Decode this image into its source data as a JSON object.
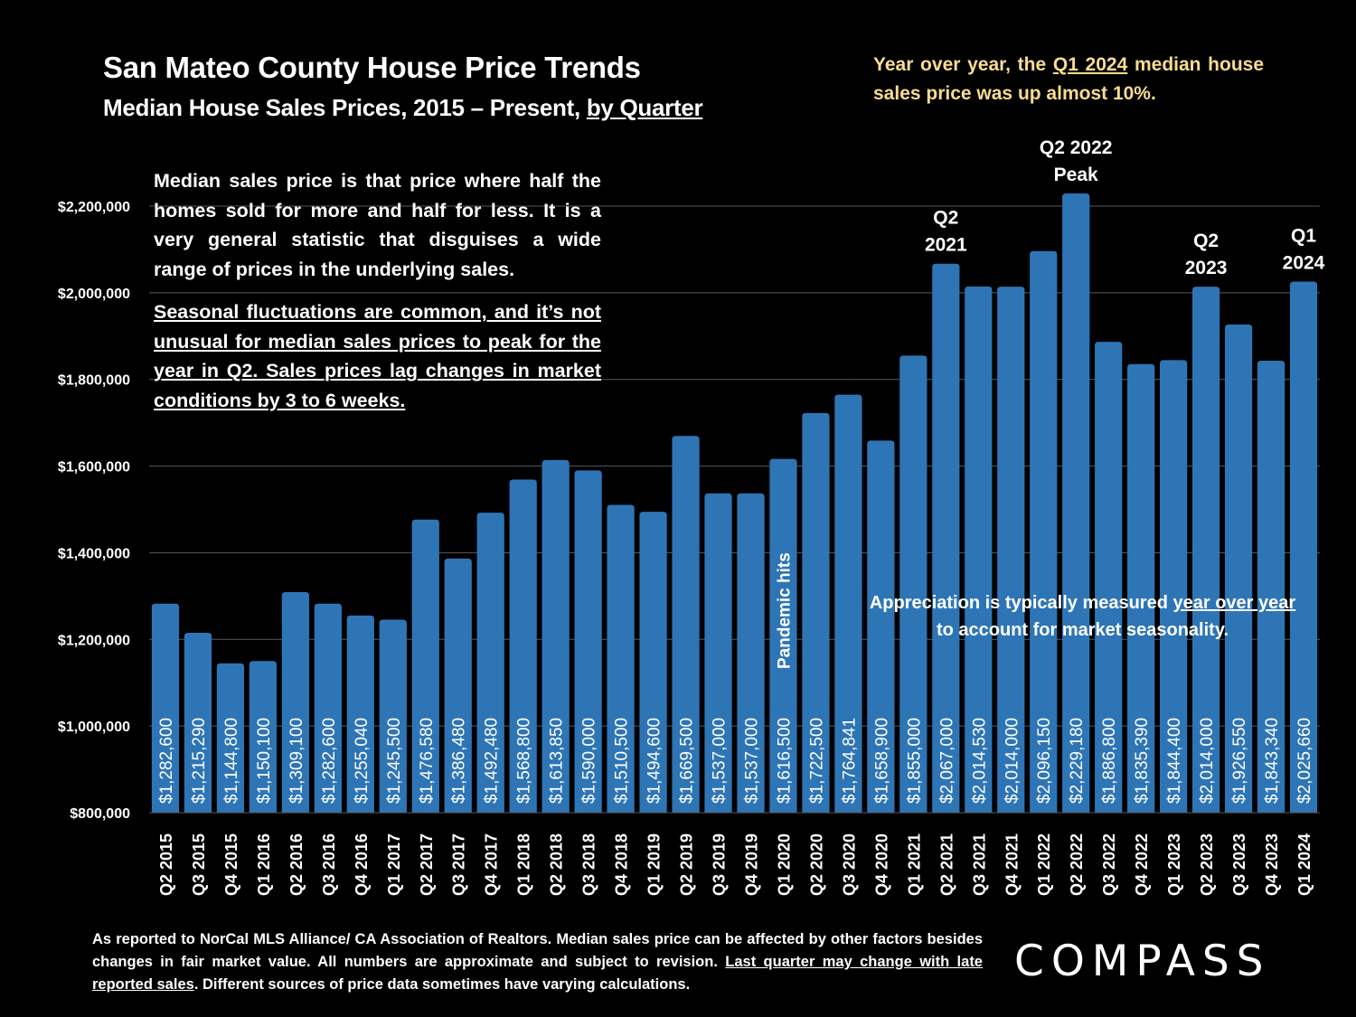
{
  "header": {
    "title": "San Mateo County House Price Trends",
    "subtitle_main": "Median House Sales Prices, 2015 – Present, ",
    "subtitle_underlined": "by Quarter"
  },
  "callouts": {
    "yoy_part1": "Year over year, the ",
    "yoy_underlined": "Q1 2024",
    "yoy_part2": " median house sales price was up almost 10%.",
    "median_definition": "Median sales price is that price where half the homes sold for more and half for less. It is a very general statistic that disguises a wide range of prices in the underlying sales.",
    "seasonal_note": "Seasonal fluctuations are common, and it’s not unusual for median sales prices to peak for the year in Q2. Sales prices lag changes in market conditions by 3 to 6 weeks.",
    "appreciation_part1": "Appreciation is typically measured ",
    "appreciation_underlined1": "year over year",
    "appreciation_part2": " to account for market seasonality."
  },
  "footer": {
    "text1": "As reported to NorCal MLS Alliance/ CA Association of Realtors. Median sales price can be affected by other factors besides changes in fair market value. All numbers are approximate and subject to revision. ",
    "underlined": "Last quarter may change with late reported sales",
    "text2": ". Different sources of price data sometimes have varying calculations."
  },
  "logo": {
    "text": "COMPASS"
  },
  "colors": {
    "bar": "#2e75b6",
    "background": "#000000",
    "highlight_text": "#f9dc8f",
    "gridline": "#595959"
  },
  "chart_data": {
    "type": "bar",
    "title": "San Mateo County House Price Trends",
    "subtitle": "Median House Sales Prices, 2015 – Present, by Quarter",
    "xlabel": "",
    "ylabel": "",
    "ylim": [
      800000,
      2200000
    ],
    "yticks": [
      800000,
      1000000,
      1200000,
      1400000,
      1600000,
      1800000,
      2000000,
      2200000
    ],
    "ytick_labels": [
      "$800,000",
      "$1,000,000",
      "$1,200,000",
      "$1,400,000",
      "$1,600,000",
      "$1,800,000",
      "$2,000,000",
      "$2,200,000"
    ],
    "grid": true,
    "categories": [
      "Q2 2015",
      "Q3 2015",
      "Q4 2015",
      "Q1 2016",
      "Q2 2016",
      "Q3 2016",
      "Q4 2016",
      "Q1 2017",
      "Q2 2017",
      "Q3 2017",
      "Q4 2017",
      "Q1 2018",
      "Q2 2018",
      "Q3 2018",
      "Q4 2018",
      "Q1 2019",
      "Q2 2019",
      "Q3 2019",
      "Q4 2019",
      "Q1 2020",
      "Q2 2020",
      "Q3 2020",
      "Q4 2020",
      "Q1 2021",
      "Q2 2021",
      "Q3 2021",
      "Q4 2021",
      "Q1 2022",
      "Q2 2022",
      "Q3 2022",
      "Q4 2022",
      "Q1 2023",
      "Q2 2023",
      "Q3 2023",
      "Q4 2023",
      "Q1 2024"
    ],
    "values": [
      1282600,
      1215290,
      1144800,
      1150100,
      1309100,
      1282600,
      1255040,
      1245500,
      1476580,
      1386480,
      1492480,
      1568800,
      1613850,
      1590000,
      1510500,
      1494600,
      1669500,
      1537000,
      1537000,
      1616500,
      1722500,
      1764841,
      1658900,
      1855000,
      2067000,
      2014530,
      2014000,
      2096150,
      2229180,
      1886800,
      1835390,
      1844400,
      2014000,
      1926550,
      1843340,
      2025660
    ],
    "data_labels": [
      "$1,282,600",
      "$1,215,290",
      "$1,144,800",
      "$1,150,100",
      "$1,309,100",
      "$1,282,600",
      "$1,255,040",
      "$1,245,500",
      "$1,476,580",
      "$1,386,480",
      "$1,492,480",
      "$1,568,800",
      "$1,613,850",
      "$1,590,000",
      "$1,510,500",
      "$1,494,600",
      "$1,669,500",
      "$1,537,000",
      "$1,537,000",
      "$1,616,500",
      "$1,722,500",
      "$1,764,841",
      "$1,658,900",
      "$1,855,000",
      "$2,067,000",
      "$2,014,530",
      "$2,014,000",
      "$2,096,150",
      "$2,229,180",
      "$1,886,800",
      "$1,835,390",
      "$1,844,400",
      "$2,014,000",
      "$1,926,550",
      "$1,843,340",
      "$2,025,660"
    ],
    "annotations": [
      {
        "category": "Q2 2021",
        "lines": [
          "Q2",
          "2021"
        ]
      },
      {
        "category": "Q2 2022",
        "lines": [
          "Q2 2022",
          "Peak"
        ]
      },
      {
        "category": "Q2 2023",
        "lines": [
          "Q2",
          "2023"
        ]
      },
      {
        "category": "Q1 2024",
        "lines": [
          "Q1",
          "2024"
        ]
      },
      {
        "category": "Q1 2020",
        "text": "Pandemic hits",
        "orientation": "vertical"
      }
    ]
  }
}
